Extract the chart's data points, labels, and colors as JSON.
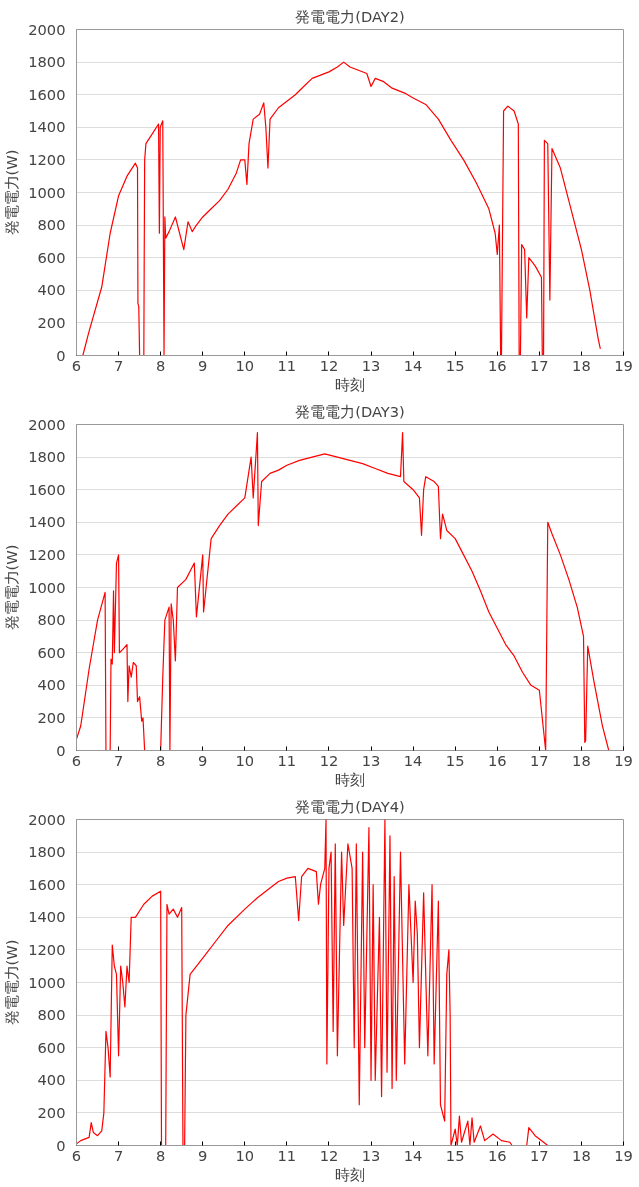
{
  "chart_data": [
    {
      "type": "line",
      "title": "発電電力(DAY2)",
      "xlabel": "時刻",
      "ylabel": "発電電力(W)",
      "xlim": [
        6,
        19
      ],
      "ylim": [
        0,
        2000
      ],
      "xticks": [
        6,
        7,
        8,
        9,
        10,
        11,
        12,
        13,
        14,
        15,
        16,
        17,
        18,
        19
      ],
      "yticks": [
        0,
        200,
        400,
        600,
        800,
        1000,
        1200,
        1400,
        1600,
        1800,
        2000
      ],
      "grid": "y",
      "x": [
        6.15,
        6.3,
        6.5,
        6.6,
        6.8,
        7.0,
        7.2,
        7.4,
        7.45,
        7.46,
        7.48,
        7.5,
        7.6,
        7.61,
        7.62,
        7.65,
        7.8,
        7.95,
        7.97,
        7.99,
        8.05,
        8.08,
        8.1,
        8.12,
        8.2,
        8.35,
        8.45,
        8.55,
        8.65,
        8.75,
        8.85,
        9.0,
        9.2,
        9.4,
        9.6,
        9.8,
        9.9,
        10.0,
        10.05,
        10.1,
        10.2,
        10.35,
        10.45,
        10.5,
        10.55,
        10.6,
        10.8,
        11.0,
        11.2,
        11.4,
        11.6,
        11.8,
        12.0,
        12.2,
        12.35,
        12.5,
        12.7,
        12.9,
        13.0,
        13.1,
        13.3,
        13.5,
        13.8,
        14.0,
        14.3,
        14.6,
        14.9,
        15.2,
        15.5,
        15.8,
        15.95,
        16.0,
        16.05,
        16.08,
        16.1,
        16.15,
        16.25,
        16.4,
        16.5,
        16.52,
        16.55,
        16.58,
        16.65,
        16.7,
        16.75,
        16.9,
        17.05,
        17.07,
        17.1,
        17.12,
        17.2,
        17.25,
        17.3,
        17.5,
        17.7,
        18.0,
        18.2,
        18.4,
        18.45
      ],
      "series": [
        {
          "color": "#ff0000",
          "values": [
            0,
            150,
            330,
            420,
            750,
            980,
            1100,
            1180,
            1150,
            320,
            300,
            0,
            0,
            650,
            1200,
            1300,
            1360,
            1420,
            750,
            1400,
            1440,
            0,
            850,
            720,
            760,
            850,
            750,
            650,
            820,
            760,
            800,
            850,
            900,
            950,
            1020,
            1120,
            1200,
            1200,
            1050,
            1300,
            1450,
            1480,
            1550,
            1400,
            1150,
            1450,
            1520,
            1560,
            1600,
            1650,
            1700,
            1720,
            1740,
            1770,
            1800,
            1770,
            1750,
            1730,
            1650,
            1700,
            1680,
            1640,
            1610,
            1580,
            1540,
            1450,
            1320,
            1200,
            1060,
            900,
            750,
            620,
            800,
            0,
            0,
            1500,
            1530,
            1500,
            1420,
            0,
            0,
            680,
            650,
            230,
            600,
            550,
            480,
            0,
            0,
            1320,
            1300,
            340,
            1270,
            1150,
            950,
            650,
            400,
            100,
            40
          ]
        }
      ]
    },
    {
      "type": "line",
      "title": "発電電力(DAY3)",
      "xlabel": "時刻",
      "ylabel": "発電電力(W)",
      "xlim": [
        6,
        19
      ],
      "ylim": [
        0,
        2000
      ],
      "xticks": [
        6,
        7,
        8,
        9,
        10,
        11,
        12,
        13,
        14,
        15,
        16,
        17,
        18,
        19
      ],
      "yticks": [
        0,
        200,
        400,
        600,
        800,
        1000,
        1200,
        1400,
        1600,
        1800,
        2000
      ],
      "grid": "y",
      "x": [
        6.0,
        6.1,
        6.3,
        6.5,
        6.68,
        6.7,
        6.8,
        6.82,
        6.85,
        6.88,
        6.9,
        6.95,
        7.0,
        7.02,
        7.1,
        7.2,
        7.22,
        7.25,
        7.3,
        7.35,
        7.42,
        7.45,
        7.5,
        7.55,
        7.58,
        7.62,
        8.0,
        8.05,
        8.1,
        8.2,
        8.22,
        8.25,
        8.3,
        8.35,
        8.4,
        8.6,
        8.8,
        8.85,
        9.0,
        9.02,
        9.2,
        9.4,
        9.6,
        9.8,
        10.0,
        10.15,
        10.2,
        10.3,
        10.32,
        10.4,
        10.6,
        10.8,
        11.0,
        11.3,
        11.6,
        11.9,
        12.2,
        12.5,
        12.8,
        13.1,
        13.4,
        13.7,
        13.75,
        13.78,
        14.0,
        14.15,
        14.2,
        14.25,
        14.3,
        14.5,
        14.6,
        14.65,
        14.7,
        14.8,
        15.0,
        15.2,
        15.4,
        15.6,
        15.8,
        16.0,
        16.2,
        16.4,
        16.6,
        16.8,
        17.0,
        17.15,
        17.2,
        17.3,
        17.5,
        17.7,
        17.9,
        18.05,
        18.08,
        18.1,
        18.15,
        18.3,
        18.5,
        18.65
      ],
      "series": [
        {
          "color": "#ff0000",
          "values": [
            70,
            150,
            500,
            800,
            970,
            0,
            0,
            560,
            530,
            980,
            600,
            1150,
            1200,
            600,
            620,
            650,
            300,
            520,
            450,
            540,
            520,
            300,
            330,
            180,
            200,
            0,
            0,
            450,
            800,
            880,
            0,
            900,
            800,
            550,
            1000,
            1050,
            1150,
            820,
            1200,
            850,
            1300,
            1380,
            1450,
            1500,
            1550,
            1800,
            1550,
            1950,
            1380,
            1650,
            1700,
            1720,
            1750,
            1780,
            1800,
            1820,
            1800,
            1780,
            1760,
            1730,
            1700,
            1680,
            1950,
            1650,
            1600,
            1550,
            1320,
            1600,
            1680,
            1650,
            1620,
            1300,
            1450,
            1350,
            1300,
            1200,
            1100,
            980,
            850,
            750,
            650,
            580,
            480,
            400,
            370,
            0,
            1400,
            1330,
            1200,
            1050,
            880,
            700,
            50,
            60,
            640,
            420,
            150,
            0
          ]
        }
      ]
    },
    {
      "type": "line",
      "title": "発電電力(DAY4)",
      "xlabel": "時刻",
      "ylabel": "発電電力(W)",
      "xlim": [
        6,
        19
      ],
      "ylim": [
        0,
        2000
      ],
      "xticks": [
        6,
        7,
        8,
        9,
        10,
        11,
        12,
        13,
        14,
        15,
        16,
        17,
        18,
        19
      ],
      "yticks": [
        0,
        200,
        400,
        600,
        800,
        1000,
        1200,
        1400,
        1600,
        1800,
        2000
      ],
      "grid": "y",
      "x": [
        6.0,
        6.1,
        6.3,
        6.35,
        6.4,
        6.5,
        6.6,
        6.65,
        6.7,
        6.75,
        6.8,
        6.85,
        6.9,
        6.95,
        7.0,
        7.05,
        7.1,
        7.15,
        7.2,
        7.25,
        7.3,
        7.4,
        7.6,
        7.8,
        8.0,
        8.02,
        8.12,
        8.15,
        8.2,
        8.3,
        8.4,
        8.5,
        8.53,
        8.57,
        8.6,
        8.7,
        9.0,
        9.3,
        9.6,
        10.0,
        10.3,
        10.6,
        10.8,
        11.0,
        11.2,
        11.28,
        11.35,
        11.5,
        11.7,
        11.75,
        11.8,
        11.9,
        11.93,
        11.95,
        12.0,
        12.05,
        12.1,
        12.15,
        12.2,
        12.3,
        12.35,
        12.45,
        12.55,
        12.6,
        12.65,
        12.72,
        12.8,
        12.85,
        12.95,
        13.0,
        13.05,
        13.1,
        13.2,
        13.25,
        13.33,
        13.38,
        13.45,
        13.5,
        13.55,
        13.6,
        13.7,
        13.8,
        13.9,
        14.0,
        14.05,
        14.1,
        14.15,
        14.25,
        14.35,
        14.45,
        14.5,
        14.6,
        14.65,
        14.75,
        14.8,
        14.85,
        14.88,
        14.9,
        15.0,
        15.05,
        15.1,
        15.15,
        15.3,
        15.35,
        15.4,
        15.45,
        15.6,
        15.7,
        15.9,
        16.1,
        16.3,
        16.35,
        16.7,
        16.75,
        16.9,
        17.1,
        17.2
      ],
      "series": [
        {
          "color": "#ff0000",
          "values": [
            10,
            30,
            50,
            140,
            80,
            60,
            90,
            200,
            700,
            600,
            420,
            1230,
            1100,
            1050,
            550,
            1100,
            1000,
            850,
            1100,
            1000,
            1400,
            1400,
            1480,
            1530,
            1560,
            0,
            0,
            1480,
            1420,
            1450,
            1400,
            1460,
            0,
            0,
            800,
            1050,
            1150,
            1250,
            1350,
            1450,
            1520,
            1580,
            1620,
            1640,
            1650,
            1380,
            1650,
            1700,
            1680,
            1480,
            1600,
            1700,
            2000,
            500,
            1700,
            1800,
            700,
            1850,
            550,
            1800,
            1350,
            1850,
            1700,
            600,
            1850,
            250,
            1800,
            600,
            1950,
            400,
            1600,
            400,
            1400,
            300,
            2000,
            450,
            1900,
            350,
            1650,
            400,
            1800,
            500,
            1600,
            1000,
            1500,
            1300,
            600,
            1550,
            550,
            1600,
            500,
            1500,
            250,
            150,
            1050,
            1200,
            800,
            0,
            100,
            0,
            180,
            20,
            150,
            0,
            170,
            20,
            120,
            30,
            70,
            30,
            20,
            0,
            0,
            110,
            60,
            20,
            0
          ]
        }
      ]
    }
  ]
}
